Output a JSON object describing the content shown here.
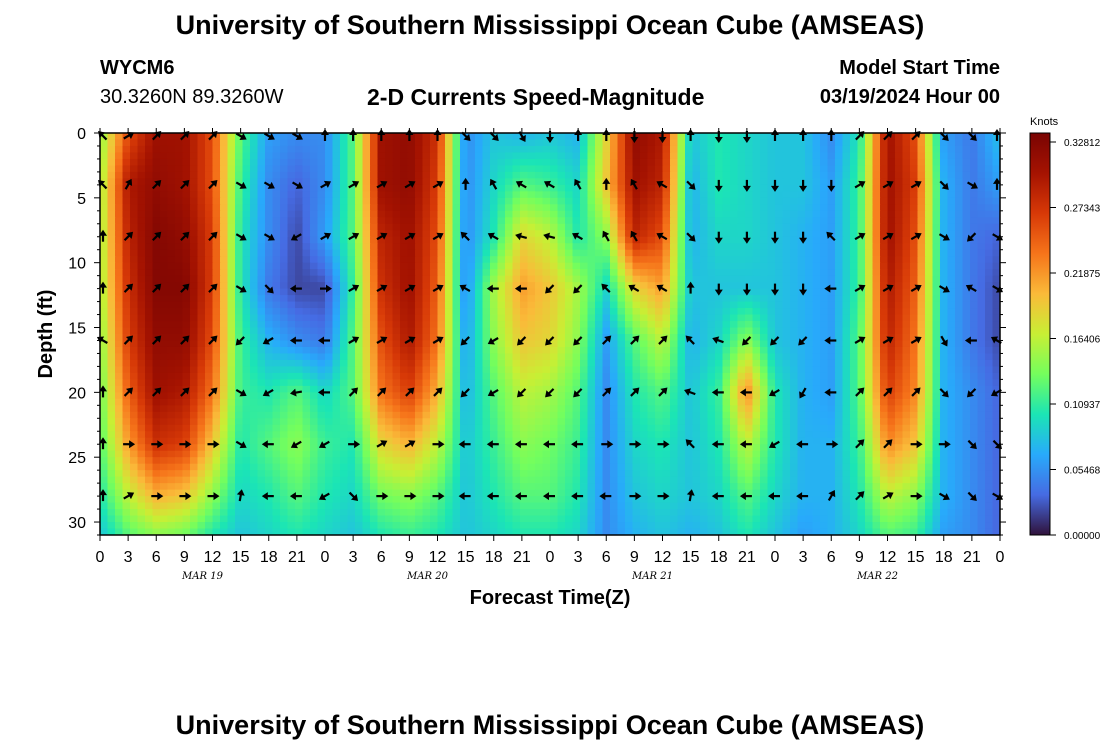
{
  "header": {
    "title": "University of Southern Mississippi Ocean Cube (AMSEAS)",
    "station_id": "WYCM6",
    "station_coords": "30.3260N  89.3260W",
    "subtitle": "2-D Currents Speed-Magnitude",
    "model_start_label": "Model Start Time",
    "model_start_value": "03/19/2024 Hour 00"
  },
  "footer": {
    "title": "University of Southern Mississippi Ocean Cube (AMSEAS)"
  },
  "chart_data": {
    "type": "heatmap",
    "title": "2-D Currents Speed-Magnitude",
    "xlabel": "Forecast Time(Z)",
    "ylabel": "Depth (ft)",
    "x_hours": [
      0,
      3,
      6,
      9,
      12,
      15,
      18,
      21,
      24,
      27,
      30,
      33,
      36,
      39,
      42,
      45,
      48,
      51,
      54,
      57,
      60,
      63,
      66,
      69,
      72,
      75,
      78,
      81,
      84,
      87,
      90,
      93,
      96
    ],
    "x_tick_labels": [
      "0",
      "3",
      "6",
      "9",
      "12",
      "15",
      "18",
      "21",
      "0",
      "3",
      "6",
      "9",
      "12",
      "15",
      "18",
      "21",
      "0",
      "3",
      "6",
      "9",
      "12",
      "15",
      "18",
      "21",
      "0",
      "3",
      "6",
      "9",
      "12",
      "15",
      "18",
      "21",
      "0"
    ],
    "date_labels": [
      {
        "label": "MAR 19",
        "hour": 12
      },
      {
        "label": "MAR 20",
        "hour": 36
      },
      {
        "label": "MAR 21",
        "hour": 60
      },
      {
        "label": "MAR 22",
        "hour": 84
      }
    ],
    "y_range": [
      0,
      31
    ],
    "y_ticks": [
      0,
      5,
      10,
      15,
      20,
      25,
      30
    ],
    "arrow_depths": [
      0,
      4,
      8,
      12,
      16,
      20,
      24,
      28
    ],
    "depth_levels": [
      0,
      4,
      8,
      12,
      16,
      20,
      24,
      28,
      31
    ],
    "speed_knots": [
      [
        0.14,
        0.25,
        0.3,
        0.3,
        0.25,
        0.12,
        0.06,
        0.05,
        0.05,
        0.12,
        0.3,
        0.31,
        0.27,
        0.05,
        0.08,
        0.07,
        0.08,
        0.07,
        0.18,
        0.31,
        0.29,
        0.08,
        0.1,
        0.09,
        0.08,
        0.08,
        0.05,
        0.1,
        0.3,
        0.25,
        0.06,
        0.04,
        0.08
      ],
      [
        0.15,
        0.29,
        0.31,
        0.3,
        0.25,
        0.11,
        0.05,
        0.03,
        0.05,
        0.12,
        0.3,
        0.31,
        0.26,
        0.05,
        0.09,
        0.12,
        0.11,
        0.09,
        0.19,
        0.3,
        0.28,
        0.07,
        0.1,
        0.09,
        0.08,
        0.08,
        0.06,
        0.11,
        0.3,
        0.26,
        0.07,
        0.04,
        0.06
      ],
      [
        0.15,
        0.28,
        0.32,
        0.31,
        0.26,
        0.1,
        0.05,
        0.02,
        0.06,
        0.12,
        0.28,
        0.3,
        0.25,
        0.05,
        0.1,
        0.18,
        0.16,
        0.1,
        0.14,
        0.28,
        0.25,
        0.07,
        0.09,
        0.09,
        0.08,
        0.07,
        0.06,
        0.11,
        0.3,
        0.25,
        0.07,
        0.04,
        0.03
      ],
      [
        0.15,
        0.27,
        0.32,
        0.32,
        0.26,
        0.1,
        0.04,
        0.02,
        0.02,
        0.11,
        0.27,
        0.3,
        0.24,
        0.05,
        0.15,
        0.21,
        0.19,
        0.15,
        0.09,
        0.18,
        0.21,
        0.08,
        0.08,
        0.08,
        0.08,
        0.07,
        0.06,
        0.11,
        0.29,
        0.24,
        0.07,
        0.04,
        0.02
      ],
      [
        0.14,
        0.26,
        0.31,
        0.31,
        0.25,
        0.11,
        0.07,
        0.05,
        0.04,
        0.12,
        0.25,
        0.29,
        0.23,
        0.06,
        0.14,
        0.19,
        0.18,
        0.14,
        0.06,
        0.12,
        0.16,
        0.07,
        0.09,
        0.14,
        0.08,
        0.07,
        0.06,
        0.12,
        0.28,
        0.23,
        0.07,
        0.04,
        0.02
      ],
      [
        0.13,
        0.24,
        0.3,
        0.29,
        0.23,
        0.11,
        0.1,
        0.12,
        0.09,
        0.12,
        0.23,
        0.26,
        0.2,
        0.07,
        0.12,
        0.16,
        0.15,
        0.12,
        0.05,
        0.1,
        0.12,
        0.08,
        0.11,
        0.22,
        0.1,
        0.07,
        0.06,
        0.12,
        0.26,
        0.22,
        0.07,
        0.05,
        0.03
      ],
      [
        0.12,
        0.21,
        0.27,
        0.26,
        0.19,
        0.1,
        0.12,
        0.14,
        0.11,
        0.1,
        0.18,
        0.2,
        0.16,
        0.08,
        0.11,
        0.14,
        0.13,
        0.11,
        0.05,
        0.09,
        0.1,
        0.08,
        0.1,
        0.16,
        0.1,
        0.07,
        0.07,
        0.11,
        0.22,
        0.19,
        0.07,
        0.05,
        0.03
      ],
      [
        0.1,
        0.16,
        0.2,
        0.19,
        0.14,
        0.09,
        0.1,
        0.12,
        0.1,
        0.09,
        0.13,
        0.14,
        0.12,
        0.08,
        0.1,
        0.12,
        0.12,
        0.1,
        0.05,
        0.08,
        0.09,
        0.08,
        0.09,
        0.12,
        0.09,
        0.07,
        0.07,
        0.1,
        0.16,
        0.14,
        0.07,
        0.05,
        0.03
      ],
      [
        0.08,
        0.12,
        0.14,
        0.13,
        0.1,
        0.08,
        0.09,
        0.1,
        0.09,
        0.08,
        0.1,
        0.11,
        0.1,
        0.08,
        0.09,
        0.1,
        0.1,
        0.09,
        0.05,
        0.07,
        0.08,
        0.07,
        0.08,
        0.1,
        0.08,
        0.06,
        0.07,
        0.09,
        0.12,
        0.11,
        0.06,
        0.05,
        0.03
      ]
    ],
    "arrow_dirs_deg": [
      [
        135,
        30,
        45,
        45,
        45,
        -30,
        -30,
        -30,
        90,
        90,
        90,
        90,
        90,
        -45,
        -45,
        -60,
        -90,
        90,
        90,
        -90,
        -90,
        90,
        -90,
        -90,
        90,
        90,
        90,
        45,
        45,
        45,
        -45,
        -45,
        90
      ],
      [
        135,
        60,
        45,
        45,
        45,
        -30,
        -30,
        -30,
        30,
        30,
        30,
        30,
        30,
        90,
        120,
        150,
        150,
        120,
        90,
        120,
        150,
        -45,
        -90,
        -90,
        -90,
        -90,
        -90,
        30,
        30,
        30,
        -45,
        -30,
        90
      ],
      [
        90,
        45,
        45,
        45,
        45,
        -30,
        -30,
        -150,
        30,
        30,
        30,
        30,
        30,
        135,
        150,
        165,
        165,
        150,
        120,
        120,
        150,
        -45,
        -90,
        -90,
        -90,
        -90,
        135,
        30,
        30,
        30,
        -30,
        -135,
        -30
      ],
      [
        90,
        45,
        45,
        45,
        45,
        -30,
        -45,
        180,
        0,
        30,
        30,
        30,
        30,
        150,
        180,
        180,
        -135,
        -135,
        135,
        150,
        150,
        90,
        -90,
        -90,
        -90,
        -90,
        180,
        30,
        30,
        30,
        -30,
        150,
        -30
      ],
      [
        150,
        45,
        45,
        45,
        45,
        -135,
        -150,
        180,
        180,
        30,
        30,
        30,
        30,
        -135,
        -150,
        -135,
        -135,
        -135,
        45,
        45,
        45,
        135,
        160,
        -135,
        -135,
        -135,
        180,
        30,
        30,
        30,
        -60,
        180,
        150
      ],
      [
        90,
        45,
        45,
        45,
        45,
        -30,
        -150,
        -170,
        180,
        45,
        45,
        45,
        45,
        -135,
        -150,
        -135,
        -135,
        -135,
        45,
        45,
        45,
        160,
        180,
        180,
        -150,
        -120,
        180,
        45,
        45,
        45,
        -45,
        -135,
        -150
      ],
      [
        90,
        0,
        0,
        0,
        0,
        -30,
        180,
        -150,
        -150,
        0,
        30,
        30,
        0,
        180,
        180,
        180,
        180,
        180,
        0,
        0,
        0,
        135,
        180,
        180,
        -150,
        180,
        0,
        45,
        45,
        0,
        0,
        -45,
        -45
      ],
      [
        90,
        30,
        0,
        0,
        0,
        80,
        180,
        180,
        -150,
        -45,
        0,
        0,
        0,
        180,
        180,
        180,
        180,
        180,
        180,
        0,
        0,
        80,
        180,
        180,
        180,
        180,
        60,
        45,
        30,
        0,
        -30,
        -45,
        -30
      ]
    ],
    "colorbar": {
      "unit": "Knots",
      "min": 0.0,
      "max": 0.32812,
      "tick_labels": [
        "0.32812",
        "0.27343",
        "0.21875",
        "0.16406",
        "0.10937",
        "0.05468",
        "0.00000"
      ]
    },
    "colors": {
      "dark_blue": "#30123b",
      "blue": "#4686fb",
      "cyan": "#1ae4b6",
      "green": "#a2fc3c",
      "yellow": "#faba39",
      "orange": "#e4460a",
      "dark_red": "#7a0403"
    }
  }
}
